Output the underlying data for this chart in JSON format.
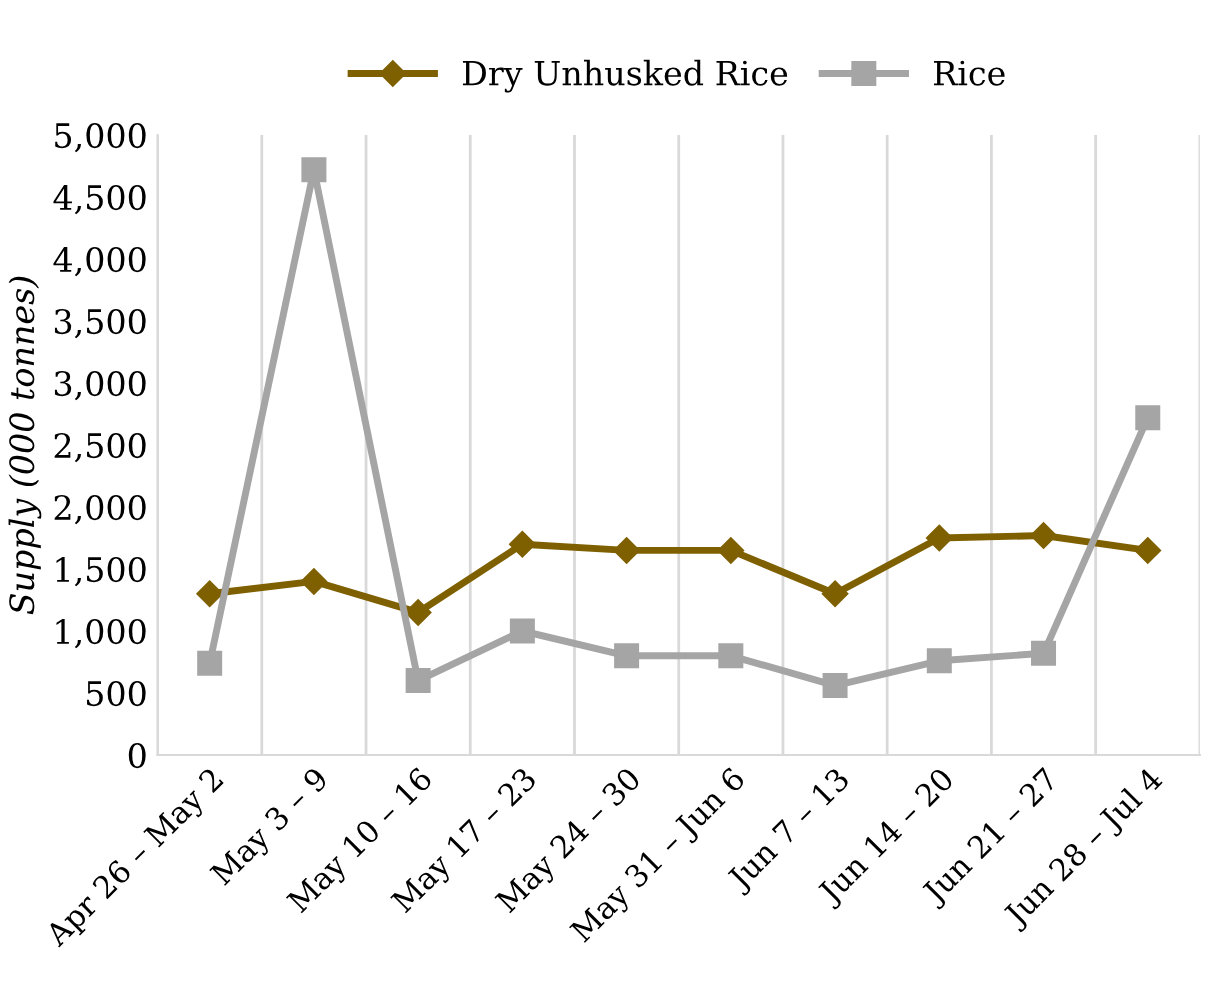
{
  "chart_data": {
    "type": "line",
    "ylabel": "Supply (000 tonnes)",
    "categories": [
      "Apr 26 – May 2",
      "May 3 – 9",
      "May 10 – 16",
      "May 17 – 23",
      "May 24 – 30",
      "May 31 – Jun 6",
      "Jun 7 – 13",
      "Jun 14 – 20",
      "Jun 21 – 27",
      "Jun 28 – Jul 4"
    ],
    "series": [
      {
        "name": "Dry Unhusked Rice",
        "color": "#7f6000",
        "marker": "diamond",
        "values": [
          1300,
          1400,
          1150,
          1700,
          1650,
          1650,
          1300,
          1750,
          1770,
          1650
        ]
      },
      {
        "name": "Rice",
        "color": "#a5a5a5",
        "marker": "square",
        "values": [
          740,
          4720,
          600,
          1000,
          800,
          800,
          560,
          760,
          820,
          2720
        ]
      }
    ],
    "ylim": [
      0,
      5000
    ],
    "yticks": [
      {
        "value": 0,
        "label": "0"
      },
      {
        "value": 500,
        "label": "500"
      },
      {
        "value": 1000,
        "label": "1,000"
      },
      {
        "value": 1500,
        "label": "1,500"
      },
      {
        "value": 2000,
        "label": "2,000"
      },
      {
        "value": 2500,
        "label": "2,500"
      },
      {
        "value": 3000,
        "label": "3,000"
      },
      {
        "value": 3500,
        "label": "3,500"
      },
      {
        "value": 4000,
        "label": "4,000"
      },
      {
        "value": 4500,
        "label": "4,500"
      },
      {
        "value": 5000,
        "label": "5,000"
      }
    ],
    "grid": "x",
    "legend": "top"
  }
}
